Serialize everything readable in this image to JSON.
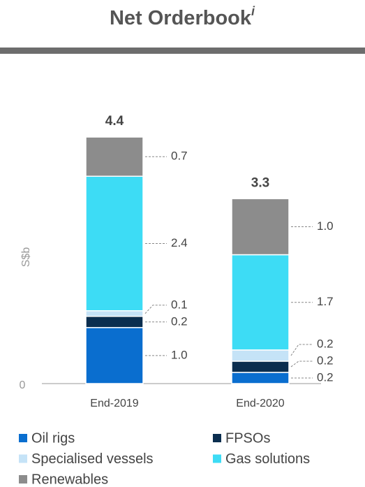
{
  "chart_data": {
    "type": "stacked_bar",
    "title": "Net Orderbook",
    "title_note": "i",
    "y_label": "S$b",
    "categories": [
      "End-2019",
      "End-2020"
    ],
    "totals": [
      4.4,
      3.3
    ],
    "series": [
      {
        "name": "Oil rigs",
        "color": "#0a6ecf",
        "values": [
          1.0,
          0.2
        ],
        "value_labels": [
          "1.0",
          "0.2"
        ]
      },
      {
        "name": "FPSOs",
        "color": "#0b2e4f",
        "values": [
          0.2,
          0.2
        ],
        "value_labels": [
          "0.2",
          "0.2"
        ]
      },
      {
        "name": "Specialised vessels",
        "color": "#c5e3f7",
        "values": [
          0.1,
          0.2
        ],
        "value_labels": [
          "0.1",
          "0.2"
        ]
      },
      {
        "name": "Gas solutions",
        "color": "#3ddcf5",
        "values": [
          2.4,
          1.7
        ],
        "value_labels": [
          "2.4",
          "1.7"
        ]
      },
      {
        "name": "Renewables",
        "color": "#8c8c8c",
        "values": [
          0.7,
          1.0
        ],
        "value_labels": [
          "0.7",
          "1.0"
        ]
      }
    ],
    "ylim": [
      0,
      5
    ],
    "yticks": [
      0
    ]
  }
}
